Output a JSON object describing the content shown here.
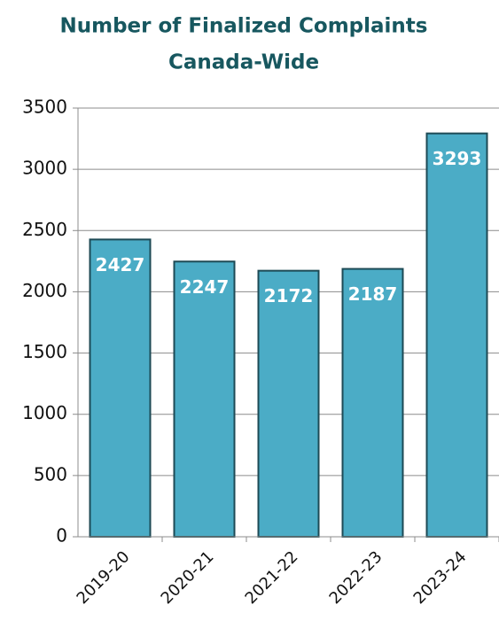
{
  "chart_data": {
    "type": "bar",
    "title": [
      "Number of Finalized Complaints",
      "Canada-Wide"
    ],
    "categories": [
      "2019-20",
      "2020-21",
      "2021-22",
      "2022-23",
      "2023-24"
    ],
    "values": [
      2427,
      2247,
      2172,
      2187,
      3293
    ],
    "color": "#4bacc6",
    "ylim": [
      0,
      3500
    ],
    "yticks": [
      0,
      500,
      1000,
      1500,
      2000,
      2500,
      3000,
      3500
    ],
    "grid": true
  }
}
